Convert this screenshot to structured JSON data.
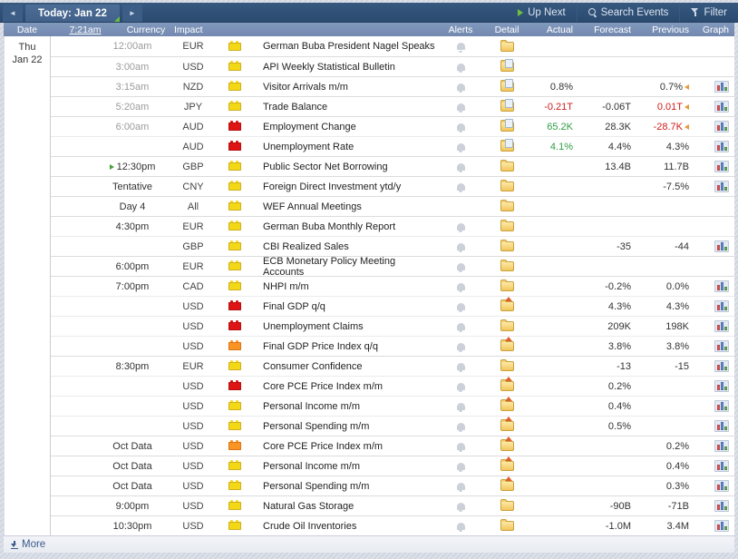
{
  "topbar": {
    "today_label": "Today: Jan 22",
    "up_next_label": "Up Next",
    "search_label": "Search Events",
    "filter_label": "Filter"
  },
  "columns": {
    "date": "Date",
    "current_time": "7:21am",
    "currency": "Currency",
    "impact": "Impact",
    "alerts": "Alerts",
    "detail": "Detail",
    "actual": "Actual",
    "forecast": "Forecast",
    "previous": "Previous",
    "graph": "Graph"
  },
  "date_cell": {
    "weekday": "Thu",
    "date": "Jan 22"
  },
  "footer": {
    "more_label": "More"
  },
  "colors": {
    "impact_yellow": "#f3d915",
    "impact_orange": "#fb9423",
    "impact_red": "#e01414",
    "actual_better": "#2f9e44",
    "actual_worse": "#cf1d1d",
    "topbar_blue": "#2f5076",
    "header_blue": "#8299be",
    "up_next_green": "#67bf3e"
  },
  "rows": [
    {
      "time": "12:00am",
      "state": "past",
      "up_next": false,
      "currency": "EUR",
      "impact": "yellow",
      "event": "German Buba President Nagel Speaks",
      "alert": true,
      "detail": "folder",
      "actual": "",
      "actual_color": "",
      "forecast": "",
      "previous": "",
      "previous_color": "",
      "revised": false,
      "graph": false,
      "group": false
    },
    {
      "time": "3:00am",
      "state": "past",
      "up_next": false,
      "currency": "USD",
      "impact": "yellow",
      "event": "API Weekly Statistical Bulletin",
      "alert": true,
      "detail": "folder-doc",
      "actual": "",
      "actual_color": "",
      "forecast": "",
      "previous": "",
      "previous_color": "",
      "revised": false,
      "graph": false,
      "group": true
    },
    {
      "time": "3:15am",
      "state": "past",
      "up_next": false,
      "currency": "NZD",
      "impact": "yellow",
      "event": "Visitor Arrivals m/m",
      "alert": true,
      "detail": "folder-doc",
      "actual": "0.8%",
      "actual_color": "neutral",
      "forecast": "",
      "previous": "0.7%",
      "previous_color": "neutral",
      "revised": true,
      "graph": true,
      "group": true
    },
    {
      "time": "5:20am",
      "state": "past",
      "up_next": false,
      "currency": "JPY",
      "impact": "yellow",
      "event": "Trade Balance",
      "alert": true,
      "detail": "folder-doc",
      "actual": "-0.21T",
      "actual_color": "bad",
      "forecast": "-0.06T",
      "previous": "0.01T",
      "previous_color": "bad",
      "revised": true,
      "graph": true,
      "group": true
    },
    {
      "time": "6:00am",
      "state": "past",
      "up_next": false,
      "currency": "AUD",
      "impact": "red",
      "event": "Employment Change",
      "alert": true,
      "detail": "folder-doc",
      "actual": "65.2K",
      "actual_color": "good",
      "forecast": "28.3K",
      "previous": "-28.7K",
      "previous_color": "bad",
      "revised": true,
      "graph": true,
      "group": true
    },
    {
      "time": "",
      "state": "past",
      "up_next": false,
      "currency": "AUD",
      "impact": "red",
      "event": "Unemployment Rate",
      "alert": true,
      "detail": "folder-doc",
      "actual": "4.1%",
      "actual_color": "good",
      "forecast": "4.4%",
      "previous": "4.3%",
      "previous_color": "neutral",
      "revised": false,
      "graph": true,
      "group": false
    },
    {
      "time": "12:30pm",
      "state": "future",
      "up_next": true,
      "currency": "GBP",
      "impact": "yellow",
      "event": "Public Sector Net Borrowing",
      "alert": true,
      "detail": "folder",
      "actual": "",
      "actual_color": "",
      "forecast": "13.4B",
      "previous": "11.7B",
      "previous_color": "neutral",
      "revised": false,
      "graph": true,
      "group": true
    },
    {
      "time": "Tentative",
      "state": "future",
      "up_next": false,
      "currency": "CNY",
      "impact": "yellow",
      "event": "Foreign Direct Investment ytd/y",
      "alert": true,
      "detail": "folder",
      "actual": "",
      "actual_color": "",
      "forecast": "",
      "previous": "-7.5%",
      "previous_color": "neutral",
      "revised": false,
      "graph": true,
      "group": true
    },
    {
      "time": "Day 4",
      "state": "future",
      "up_next": false,
      "currency": "All",
      "impact": "yellow",
      "event": "WEF Annual Meetings",
      "alert": false,
      "detail": "folder",
      "actual": "",
      "actual_color": "",
      "forecast": "",
      "previous": "",
      "previous_color": "",
      "revised": false,
      "graph": false,
      "group": true
    },
    {
      "time": "4:30pm",
      "state": "future",
      "up_next": false,
      "currency": "EUR",
      "impact": "yellow",
      "event": "German Buba Monthly Report",
      "alert": true,
      "detail": "folder",
      "actual": "",
      "actual_color": "",
      "forecast": "",
      "previous": "",
      "previous_color": "",
      "revised": false,
      "graph": false,
      "group": true
    },
    {
      "time": "",
      "state": "future",
      "up_next": false,
      "currency": "GBP",
      "impact": "yellow",
      "event": "CBI Realized Sales",
      "alert": true,
      "detail": "folder",
      "actual": "",
      "actual_color": "",
      "forecast": "-35",
      "previous": "-44",
      "previous_color": "neutral",
      "revised": false,
      "graph": true,
      "group": false
    },
    {
      "time": "6:00pm",
      "state": "future",
      "up_next": false,
      "currency": "EUR",
      "impact": "yellow",
      "event": "ECB Monetary Policy Meeting Accounts",
      "alert": true,
      "detail": "folder",
      "actual": "",
      "actual_color": "",
      "forecast": "",
      "previous": "",
      "previous_color": "",
      "revised": false,
      "graph": false,
      "group": true
    },
    {
      "time": "7:00pm",
      "state": "future",
      "up_next": false,
      "currency": "CAD",
      "impact": "yellow",
      "event": "NHPI m/m",
      "alert": true,
      "detail": "folder",
      "actual": "",
      "actual_color": "",
      "forecast": "-0.2%",
      "previous": "0.0%",
      "previous_color": "neutral",
      "revised": false,
      "graph": true,
      "group": true
    },
    {
      "time": "",
      "state": "future",
      "up_next": false,
      "currency": "USD",
      "impact": "red",
      "event": "Final GDP q/q",
      "alert": true,
      "detail": "folder-arrow",
      "actual": "",
      "actual_color": "",
      "forecast": "4.3%",
      "previous": "4.3%",
      "previous_color": "neutral",
      "revised": false,
      "graph": true,
      "group": false
    },
    {
      "time": "",
      "state": "future",
      "up_next": false,
      "currency": "USD",
      "impact": "red",
      "event": "Unemployment Claims",
      "alert": true,
      "detail": "folder",
      "actual": "",
      "actual_color": "",
      "forecast": "209K",
      "previous": "198K",
      "previous_color": "neutral",
      "revised": false,
      "graph": true,
      "group": false
    },
    {
      "time": "",
      "state": "future",
      "up_next": false,
      "currency": "USD",
      "impact": "orange",
      "event": "Final GDP Price Index q/q",
      "alert": true,
      "detail": "folder-arrow",
      "actual": "",
      "actual_color": "",
      "forecast": "3.8%",
      "previous": "3.8%",
      "previous_color": "neutral",
      "revised": false,
      "graph": true,
      "group": false
    },
    {
      "time": "8:30pm",
      "state": "future",
      "up_next": false,
      "currency": "EUR",
      "impact": "yellow",
      "event": "Consumer Confidence",
      "alert": true,
      "detail": "folder",
      "actual": "",
      "actual_color": "",
      "forecast": "-13",
      "previous": "-15",
      "previous_color": "neutral",
      "revised": false,
      "graph": true,
      "group": true
    },
    {
      "time": "",
      "state": "future",
      "up_next": false,
      "currency": "USD",
      "impact": "red",
      "event": "Core PCE Price Index m/m",
      "alert": true,
      "detail": "folder-arrow",
      "actual": "",
      "actual_color": "",
      "forecast": "0.2%",
      "previous": "",
      "previous_color": "",
      "revised": false,
      "graph": true,
      "group": false
    },
    {
      "time": "",
      "state": "future",
      "up_next": false,
      "currency": "USD",
      "impact": "yellow",
      "event": "Personal Income m/m",
      "alert": true,
      "detail": "folder-arrow",
      "actual": "",
      "actual_color": "",
      "forecast": "0.4%",
      "previous": "",
      "previous_color": "",
      "revised": false,
      "graph": true,
      "group": false
    },
    {
      "time": "",
      "state": "future",
      "up_next": false,
      "currency": "USD",
      "impact": "yellow",
      "event": "Personal Spending m/m",
      "alert": true,
      "detail": "folder-arrow",
      "actual": "",
      "actual_color": "",
      "forecast": "0.5%",
      "previous": "",
      "previous_color": "",
      "revised": false,
      "graph": true,
      "group": false
    },
    {
      "time": "Oct Data",
      "state": "future",
      "up_next": false,
      "currency": "USD",
      "impact": "orange",
      "event": "Core PCE Price Index m/m",
      "alert": true,
      "detail": "folder-arrow",
      "actual": "",
      "actual_color": "",
      "forecast": "",
      "previous": "0.2%",
      "previous_color": "neutral",
      "revised": false,
      "graph": true,
      "group": true
    },
    {
      "time": "Oct Data",
      "state": "future",
      "up_next": false,
      "currency": "USD",
      "impact": "yellow",
      "event": "Personal Income m/m",
      "alert": true,
      "detail": "folder-arrow",
      "actual": "",
      "actual_color": "",
      "forecast": "",
      "previous": "0.4%",
      "previous_color": "neutral",
      "revised": false,
      "graph": true,
      "group": true
    },
    {
      "time": "Oct Data",
      "state": "future",
      "up_next": false,
      "currency": "USD",
      "impact": "yellow",
      "event": "Personal Spending m/m",
      "alert": true,
      "detail": "folder-arrow",
      "actual": "",
      "actual_color": "",
      "forecast": "",
      "previous": "0.3%",
      "previous_color": "neutral",
      "revised": false,
      "graph": true,
      "group": true
    },
    {
      "time": "9:00pm",
      "state": "future",
      "up_next": false,
      "currency": "USD",
      "impact": "yellow",
      "event": "Natural Gas Storage",
      "alert": true,
      "detail": "folder",
      "actual": "",
      "actual_color": "",
      "forecast": "-90B",
      "previous": "-71B",
      "previous_color": "neutral",
      "revised": false,
      "graph": true,
      "group": true
    },
    {
      "time": "10:30pm",
      "state": "future",
      "up_next": false,
      "currency": "USD",
      "impact": "yellow",
      "event": "Crude Oil Inventories",
      "alert": true,
      "detail": "folder",
      "actual": "",
      "actual_color": "",
      "forecast": "-1.0M",
      "previous": "3.4M",
      "previous_color": "neutral",
      "revised": false,
      "graph": true,
      "group": true
    }
  ]
}
